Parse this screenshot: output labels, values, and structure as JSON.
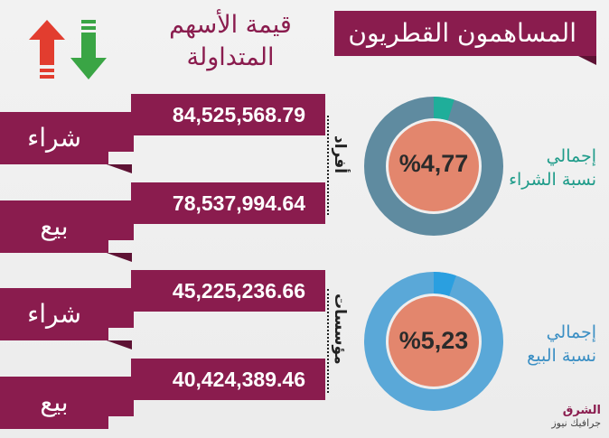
{
  "header": {
    "title": "المساهمون القطريون",
    "column_title_line1": "قيمة الأسهم",
    "column_title_line2": "المتداولة"
  },
  "rows": [
    {
      "label": "شراء",
      "value": "84,525,568.79"
    },
    {
      "label": "بيع",
      "value": "78,537,994.64"
    },
    {
      "label": "شراء",
      "value": "45,225,236.66"
    },
    {
      "label": "بيع",
      "value": "40,424,389.46"
    }
  ],
  "groups": {
    "individuals": "أفراد",
    "institutions": "مؤسسات"
  },
  "donuts": [
    {
      "value_text": "%4,77",
      "fraction": 0.0477,
      "ring_color": "#5f8ba0",
      "slice_color": "#1fae9a",
      "center_color": "#e3866d"
    },
    {
      "value_text": "%5,23",
      "fraction": 0.0523,
      "ring_color": "#5aa8d8",
      "slice_color": "#2a9fe0",
      "center_color": "#e3866d"
    }
  ],
  "side_labels": {
    "buy_line1": "إجمالي",
    "buy_line2": "نسبة الشراء",
    "sell_line1": "إجمالي",
    "sell_line2": "نسبة البيع"
  },
  "footer": {
    "brand_main": "الشرق",
    "brand_sub": "جرافيك نيوز"
  },
  "colors": {
    "primary": "#8a1c4e",
    "arrow_up": "#e23d2f",
    "arrow_down": "#3aa545"
  },
  "icons": [
    "arrow-up-icon",
    "arrow-down-icon"
  ]
}
